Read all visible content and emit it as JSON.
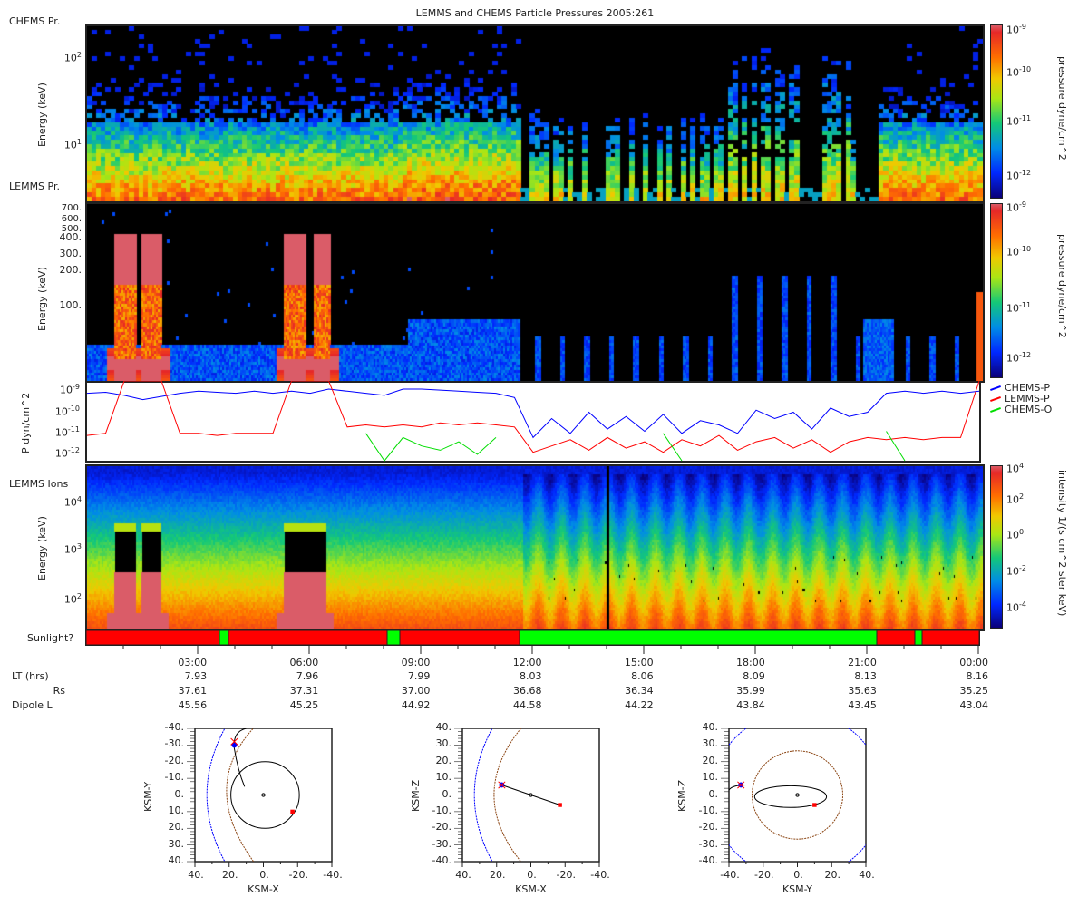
{
  "title": "LEMMS and CHEMS Particle Pressures  2005:261",
  "panels": {
    "chems": {
      "label": "CHEMS Pr.",
      "ylabel": "Energy (keV)",
      "yticks": [
        {
          "base": "10",
          "exp": "2"
        },
        {
          "base": "10",
          "exp": "1"
        }
      ],
      "cbar_label": "pressure dyne/cm^2",
      "cbar_ticks": [
        {
          "base": "10",
          "exp": "-9"
        },
        {
          "base": "10",
          "exp": "-10"
        },
        {
          "base": "10",
          "exp": "-11"
        },
        {
          "base": "10",
          "exp": "-12"
        }
      ]
    },
    "lemms": {
      "label": "LEMMS Pr.",
      "ylabel": "Energy (keV)",
      "yticks": [
        "700.",
        "600.",
        "500.",
        "400.",
        "300.",
        "200.",
        "100."
      ],
      "cbar_label": "pressure dyne/cm^2",
      "cbar_ticks": [
        {
          "base": "10",
          "exp": "-9"
        },
        {
          "base": "10",
          "exp": "-10"
        },
        {
          "base": "10",
          "exp": "-11"
        },
        {
          "base": "10",
          "exp": "-12"
        }
      ]
    },
    "ions": {
      "label": "LEMMS Ions",
      "ylabel": "Energy (keV)",
      "yticks": [
        {
          "base": "10",
          "exp": "4"
        },
        {
          "base": "10",
          "exp": "3"
        },
        {
          "base": "10",
          "exp": "2"
        }
      ],
      "cbar_label": "intensity 1/(s cm^2 ster keV)",
      "cbar_ticks": [
        {
          "base": "10",
          "exp": "4"
        },
        {
          "base": "10",
          "exp": "2"
        },
        {
          "base": "10",
          "exp": "0"
        },
        {
          "base": "10",
          "exp": "-2"
        },
        {
          "base": "10",
          "exp": "-4"
        }
      ]
    },
    "sunlight": {
      "label": "Sunlight?",
      "colors": {
        "yes": "#00ff00",
        "no": "#ff0000"
      },
      "segments": [
        {
          "start": 0,
          "end": 3.58,
          "state": "no"
        },
        {
          "start": 3.58,
          "end": 3.83,
          "state": "yes"
        },
        {
          "start": 3.83,
          "end": 8.09,
          "state": "no"
        },
        {
          "start": 8.09,
          "end": 8.43,
          "state": "yes"
        },
        {
          "start": 8.43,
          "end": 11.65,
          "state": "no"
        },
        {
          "start": 11.65,
          "end": 21.25,
          "state": "yes"
        },
        {
          "start": 21.25,
          "end": 22.27,
          "state": "no"
        },
        {
          "start": 22.27,
          "end": 22.47,
          "state": "yes"
        },
        {
          "start": 22.47,
          "end": 24,
          "state": "no"
        }
      ]
    }
  },
  "chart_data": {
    "type": "line",
    "ylabel": "P dyn/cm^2",
    "ylim_log10": [
      -12.3,
      -8.6
    ],
    "yticks": [
      {
        "base": "10",
        "exp": "-9"
      },
      {
        "base": "10",
        "exp": "-10"
      },
      {
        "base": "10",
        "exp": "-11"
      },
      {
        "base": "10",
        "exp": "-12"
      }
    ],
    "x_hours": [
      0,
      0.5,
      1,
      1.5,
      2,
      2.5,
      3,
      3.5,
      4,
      4.5,
      5,
      5.5,
      6,
      6.5,
      7,
      7.5,
      8,
      8.5,
      9,
      9.5,
      10,
      10.5,
      11,
      11.5,
      12,
      12.5,
      13,
      13.5,
      14,
      14.5,
      15,
      15.5,
      16,
      16.5,
      17,
      17.5,
      18,
      18.5,
      19,
      19.5,
      20,
      20.5,
      21,
      21.5,
      22,
      22.5,
      23,
      23.5,
      24
    ],
    "legend_position": "right",
    "series": [
      {
        "name": "CHEMS-P",
        "color": "#0000ff",
        "log10_values": [
          -9.1,
          -9.05,
          -9.2,
          -9.4,
          -9.25,
          -9.1,
          -9.0,
          -9.05,
          -9.1,
          -9.0,
          -9.1,
          -9.0,
          -9.1,
          -8.9,
          -9.0,
          -9.1,
          -9.2,
          -8.9,
          -8.9,
          -8.95,
          -9.0,
          -9.05,
          -9.1,
          -9.3,
          -11.2,
          -10.3,
          -11.0,
          -10.0,
          -10.8,
          -10.2,
          -10.9,
          -10.1,
          -11.0,
          -10.4,
          -10.6,
          -11.0,
          -9.9,
          -10.3,
          -10.0,
          -10.8,
          -9.8,
          -10.2,
          -10.0,
          -9.1,
          -9.0,
          -9.1,
          -9.0,
          -9.1,
          -9.0
        ]
      },
      {
        "name": "LEMMS-P",
        "color": "#ff0000",
        "log10_values": [
          -11.1,
          -11.0,
          -8.5,
          -8.5,
          -8.5,
          -11.0,
          -11.0,
          -11.1,
          -11.0,
          -11.0,
          -11.0,
          -8.5,
          -8.5,
          -8.5,
          -10.7,
          -10.6,
          -10.7,
          -10.6,
          -10.7,
          -10.5,
          -10.6,
          -10.5,
          -10.6,
          -10.7,
          -11.9,
          -11.6,
          -11.3,
          -11.8,
          -11.2,
          -11.7,
          -11.4,
          -11.9,
          -11.3,
          -11.6,
          -11.1,
          -11.8,
          -11.4,
          -11.2,
          -11.7,
          -11.3,
          -11.9,
          -11.4,
          -11.2,
          -11.3,
          -11.2,
          -11.3,
          -11.2,
          -11.2,
          -8.5
        ]
      },
      {
        "name": "CHEMS-O",
        "color": "#00dd00",
        "log10_values": [
          null,
          null,
          null,
          null,
          null,
          null,
          null,
          null,
          null,
          null,
          null,
          null,
          null,
          null,
          null,
          -11.0,
          -12.3,
          -11.2,
          -11.6,
          -11.8,
          -11.4,
          -12.0,
          -11.2,
          null,
          null,
          null,
          null,
          null,
          null,
          null,
          null,
          -11.0,
          -12.3,
          null,
          null,
          null,
          null,
          null,
          null,
          null,
          null,
          null,
          null,
          -10.9,
          -12.3,
          null,
          null,
          null,
          null
        ]
      }
    ]
  },
  "time_axis": {
    "ticks": [
      "03:00",
      "06:00",
      "09:00",
      "12:00",
      "15:00",
      "18:00",
      "21:00",
      "00:00"
    ],
    "rows": [
      {
        "label": "LT (hrs)",
        "values": [
          "7.93",
          "7.96",
          "7.99",
          "8.03",
          "8.06",
          "8.09",
          "8.13",
          "8.16"
        ]
      },
      {
        "label": "Rs",
        "values": [
          "37.61",
          "37.31",
          "37.00",
          "36.68",
          "36.34",
          "35.99",
          "35.63",
          "35.25"
        ]
      },
      {
        "label": "Dipole L",
        "values": [
          "45.56",
          "45.25",
          "44.92",
          "44.58",
          "44.22",
          "43.84",
          "43.45",
          "43.04"
        ]
      }
    ]
  },
  "orbits": [
    {
      "xlabel": "KSM-X",
      "ylabel": "KSM-Y",
      "xticks": [
        "40.",
        "20.",
        "0.",
        "-20.",
        "-40."
      ],
      "yticks": [
        "-40.",
        "-30.",
        "-20.",
        "-10.",
        "0.",
        "10.",
        "20.",
        "30.",
        "40."
      ]
    },
    {
      "xlabel": "KSM-X",
      "ylabel": "KSM-Z",
      "xticks": [
        "40.",
        "20.",
        "0.",
        "-20.",
        "-40."
      ],
      "yticks": [
        "40.",
        "30.",
        "20.",
        "10.",
        "0.",
        "-10.",
        "-20.",
        "-30.",
        "-40."
      ]
    },
    {
      "xlabel": "KSM-Y",
      "ylabel": "KSM-Z",
      "xticks": [
        "-40.",
        "-20.",
        "0.",
        "20.",
        "40."
      ],
      "yticks": [
        "40.",
        "30.",
        "20.",
        "10.",
        "0.",
        "-10.",
        "-20.",
        "-30.",
        "-40."
      ]
    }
  ]
}
